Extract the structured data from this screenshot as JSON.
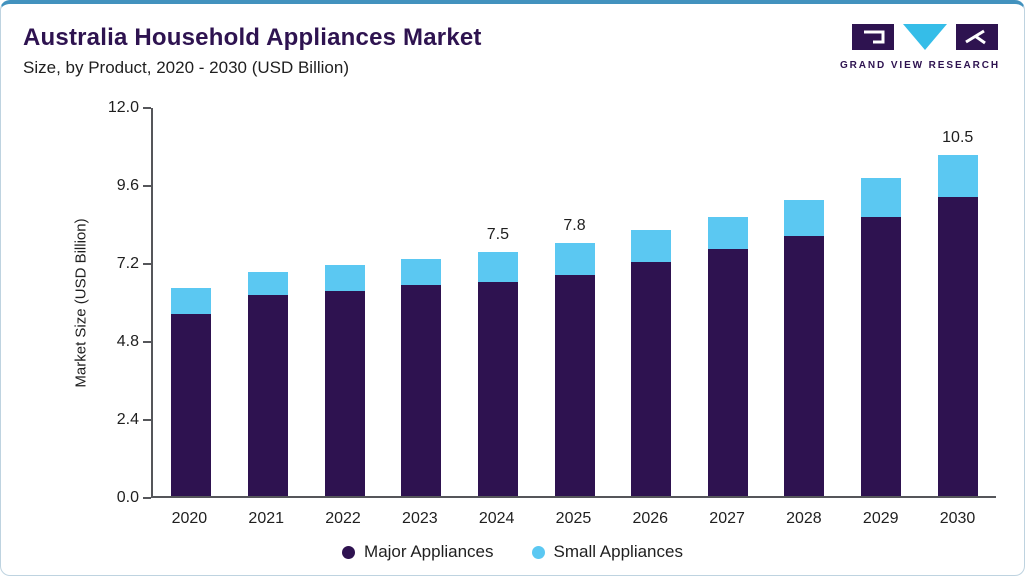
{
  "header": {
    "title": "Australia Household Appliances Market",
    "subtitle": "Size, by Product, 2020 - 2030 (USD Billion)",
    "logo_text": "GRAND VIEW RESEARCH"
  },
  "colors": {
    "title_text": "#2e1350",
    "top_accent": "#4292be",
    "card_border": "#bed3e0",
    "axis": "#55565a",
    "major_appliances": "#2e1250",
    "small_appliances": "#5bc8f2",
    "logo_triangle": "#35bde8"
  },
  "chart_data": {
    "type": "bar",
    "stacked": true,
    "title": "Australia Household Appliances Market",
    "subtitle": "Size, by Product, 2020 - 2030 (USD Billion)",
    "xlabel": "",
    "ylabel": "Market Size (USD Billion)",
    "ylim": [
      0,
      12
    ],
    "ytick_labels": [
      "0.0",
      "2.4",
      "4.8",
      "7.2",
      "9.6",
      "12.0"
    ],
    "grid": false,
    "legend_position": "bottom",
    "categories": [
      "2020",
      "2021",
      "2022",
      "2023",
      "2024",
      "2025",
      "2026",
      "2027",
      "2028",
      "2029",
      "2030"
    ],
    "series": [
      {
        "name": "Major Appliances",
        "color": "#2e1250",
        "values": [
          5.6,
          6.2,
          6.3,
          6.5,
          6.6,
          6.8,
          7.2,
          7.6,
          8.0,
          8.6,
          9.2
        ]
      },
      {
        "name": "Small Appliances",
        "color": "#5bc8f2",
        "values": [
          0.8,
          0.7,
          0.8,
          0.8,
          0.9,
          1.0,
          1.0,
          1.0,
          1.1,
          1.2,
          1.3
        ]
      }
    ],
    "totals": [
      6.4,
      6.9,
      7.1,
      7.3,
      7.5,
      7.8,
      8.2,
      8.6,
      9.1,
      9.8,
      10.5
    ],
    "bar_labels": [
      "",
      "",
      "",
      "",
      "7.5",
      "7.8",
      "",
      "",
      "",
      "",
      "10.5"
    ]
  }
}
